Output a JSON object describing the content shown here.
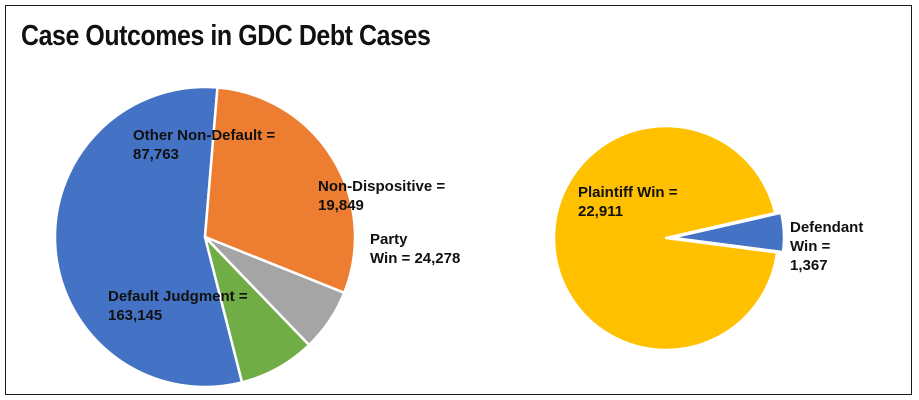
{
  "title": "Case Outcomes in GDC Debt Cases",
  "chart_data": [
    {
      "type": "pie",
      "slices": [
        {
          "name": "Default Judgment",
          "value": 163145,
          "label_lines": [
            "Default Judgment =",
            "163,145"
          ],
          "color": "#4472c4"
        },
        {
          "name": "Other Non-Default",
          "value": 87763,
          "label_lines": [
            "Other Non-Default =",
            "87,763"
          ],
          "color": "#ed7d31"
        },
        {
          "name": "Non-Dispositive",
          "value": 19849,
          "label_lines": [
            "Non-Dispositive =",
            "19,849"
          ],
          "color": "#a5a5a5"
        },
        {
          "name": "Party Win",
          "value": 24278,
          "label_lines": [
            "Party",
            "Win = 24,278"
          ],
          "color": "#70ad47"
        }
      ]
    },
    {
      "type": "pie",
      "slices": [
        {
          "name": "Plaintiff Win",
          "value": 22911,
          "label_lines": [
            "Plaintiff Win =",
            "22,911"
          ],
          "color": "#ffc000"
        },
        {
          "name": "Defendant Win",
          "value": 1367,
          "label_lines": [
            "Defendant",
            "Win =",
            "1,367"
          ],
          "color": "#4472c4"
        }
      ]
    }
  ]
}
